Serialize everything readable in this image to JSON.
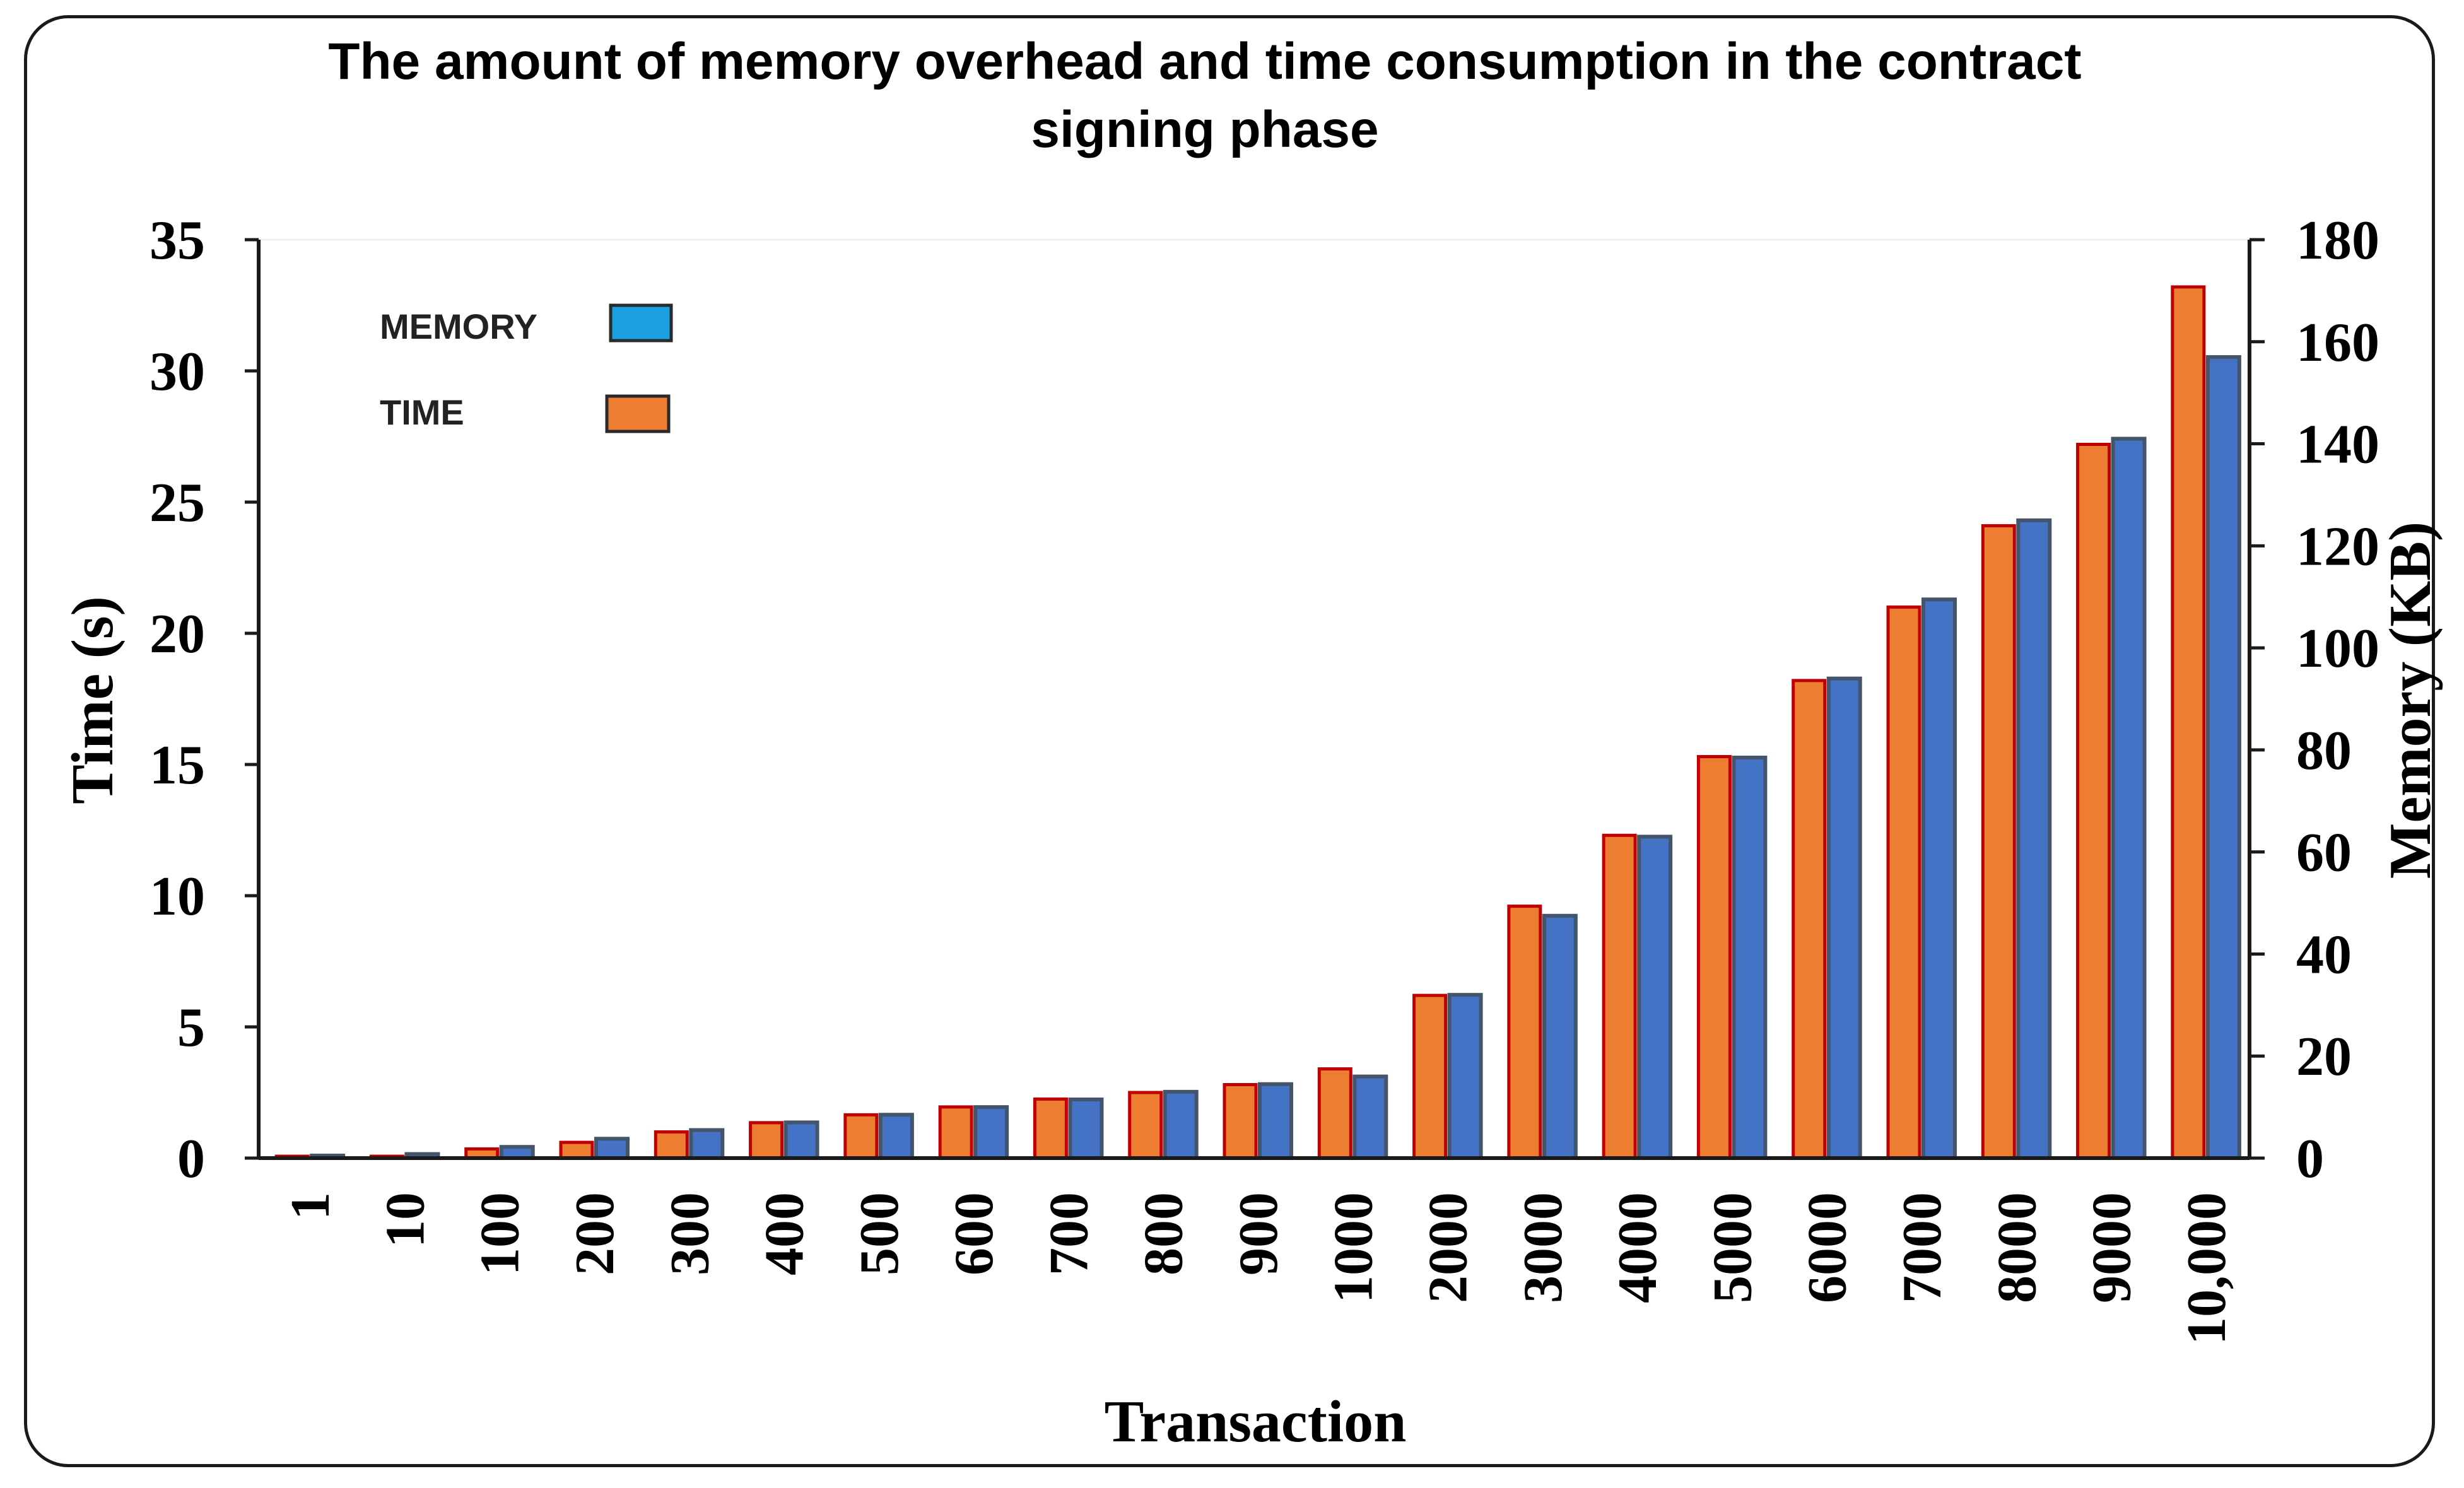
{
  "chart_data": {
    "type": "bar",
    "title_lines": [
      "The amount of memory overhead and time consumption in the contract",
      "signing phase"
    ],
    "xlabel": "Transaction",
    "ylabel_left": "Time (s)",
    "ylabel_right": "Memory (KB)",
    "categories": [
      "1",
      "10",
      "100",
      "200",
      "300",
      "400",
      "500",
      "600",
      "700",
      "800",
      "900",
      "1000",
      "2000",
      "3000",
      "4000",
      "5000",
      "6000",
      "7000",
      "8000",
      "9000",
      "10,000"
    ],
    "ylim_left": [
      0,
      35
    ],
    "ylim_right": [
      0,
      180
    ],
    "yticks_left": [
      "0",
      "5",
      "10",
      "15",
      "20",
      "25",
      "30",
      "35"
    ],
    "yticks_right": [
      "0",
      "20",
      "40",
      "60",
      "80",
      "100",
      "120",
      "140",
      "160",
      "180"
    ],
    "legend": {
      "memory_label": "MEMORY",
      "time_label": "TIME",
      "placement": "top-left"
    },
    "series": [
      {
        "name": "TIME",
        "axis": "left",
        "color": "#ED7D31",
        "edge": "#C00000",
        "values": [
          0.0,
          0.05,
          0.35,
          0.6,
          1.0,
          1.35,
          1.65,
          1.95,
          2.25,
          2.5,
          2.8,
          3.4,
          6.2,
          9.6,
          12.3,
          15.3,
          18.2,
          21.0,
          24.1,
          27.2,
          33.2
        ]
      },
      {
        "name": "MEMORY",
        "axis": "right",
        "color": "#4472C4",
        "edge": "#44546A",
        "values": [
          0.5,
          0.8,
          2.2,
          3.8,
          5.5,
          7.0,
          8.5,
          10.0,
          11.5,
          13.0,
          14.5,
          16.0,
          32.0,
          47.5,
          63.0,
          78.5,
          94.0,
          109.5,
          125.0,
          141.0,
          157.0
        ]
      }
    ],
    "legend_swatch_memory": "#1BA1E2",
    "grid": false
  }
}
